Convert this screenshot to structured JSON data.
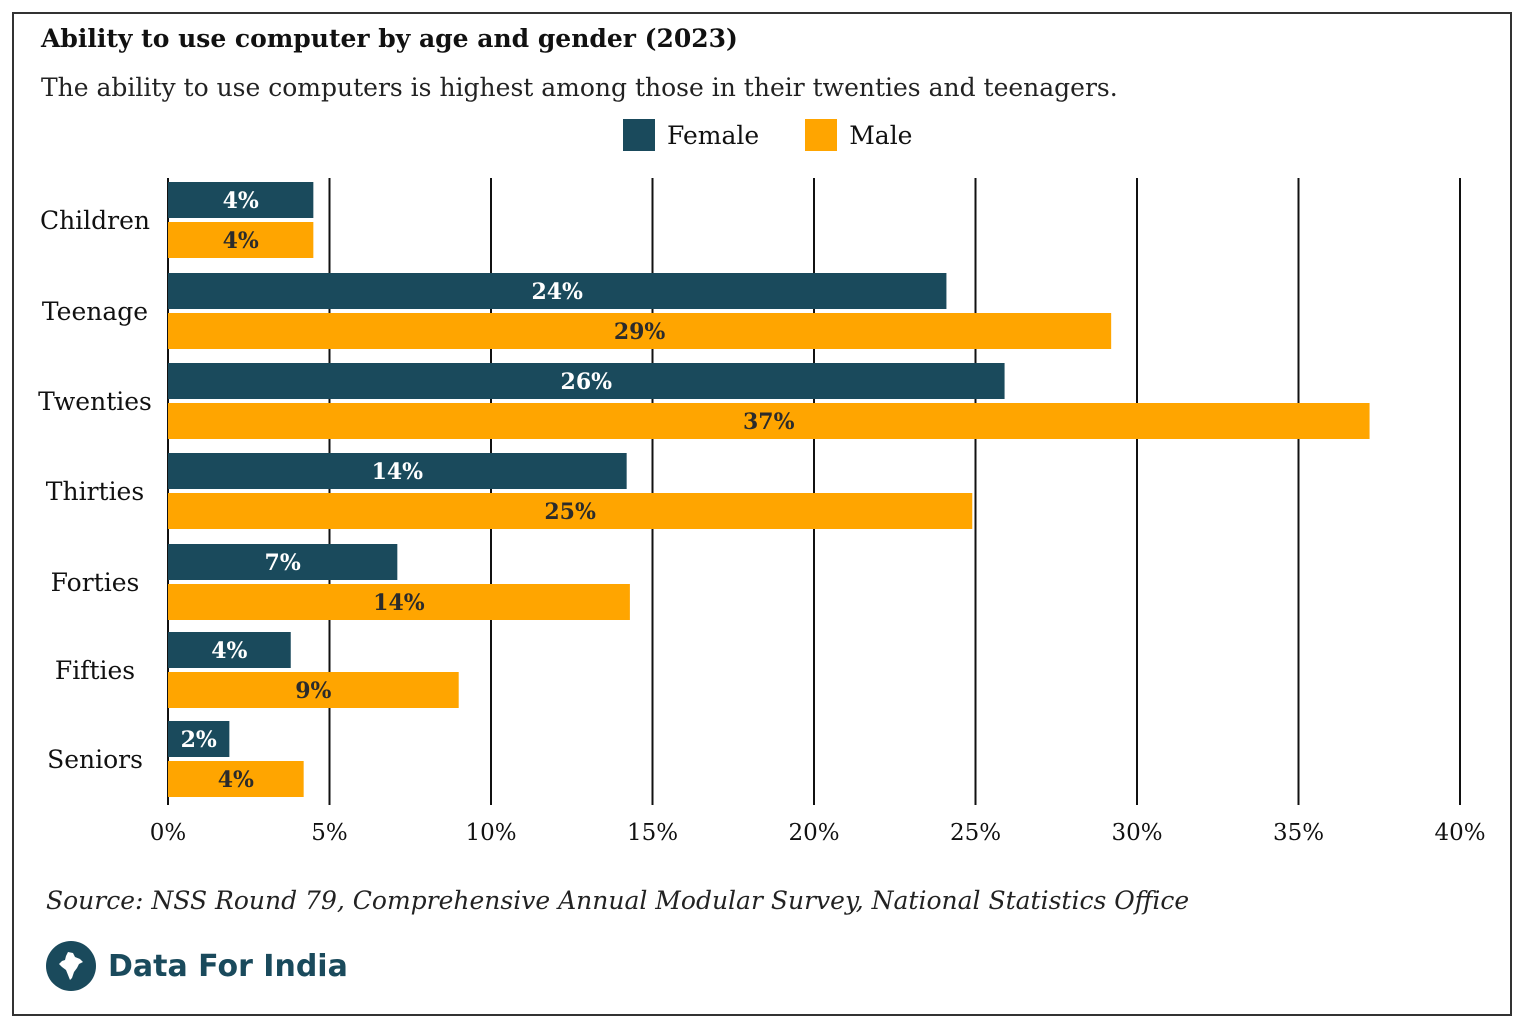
{
  "chart_data": {
    "type": "bar",
    "orientation": "horizontal",
    "title": "Ability to use computer by age and gender (2023)",
    "subtitle": "The ability to use computers is highest among those in their twenties and teenagers.",
    "categories": [
      "Children",
      "Teenage",
      "Twenties",
      "Thirties",
      "Forties",
      "Fifties",
      "Seniors"
    ],
    "series": [
      {
        "name": "Female",
        "color": "#1a4a5c",
        "values": [
          4.5,
          24.1,
          25.9,
          14.2,
          7.1,
          3.8,
          1.9
        ],
        "labels": [
          "4%",
          "24%",
          "26%",
          "14%",
          "7%",
          "4%",
          "2%"
        ]
      },
      {
        "name": "Male",
        "color": "#ffa500",
        "values": [
          4.5,
          29.2,
          37.2,
          24.9,
          14.3,
          9.0,
          4.2
        ],
        "labels": [
          "4%",
          "29%",
          "37%",
          "25%",
          "14%",
          "9%",
          "4%"
        ]
      }
    ],
    "xlim": [
      0,
      40
    ],
    "xticks": [
      0,
      5,
      10,
      15,
      20,
      25,
      30,
      35,
      40
    ],
    "xtick_labels": [
      "0%",
      "5%",
      "10%",
      "15%",
      "20%",
      "25%",
      "30%",
      "35%",
      "40%"
    ],
    "grid": true,
    "legend_position": "top-center"
  },
  "source": "Source: NSS Round 79, Comprehensive Annual Modular Survey, National Statistics Office",
  "brand": {
    "name": "Data For India",
    "logo_icon": "india-map-icon"
  }
}
